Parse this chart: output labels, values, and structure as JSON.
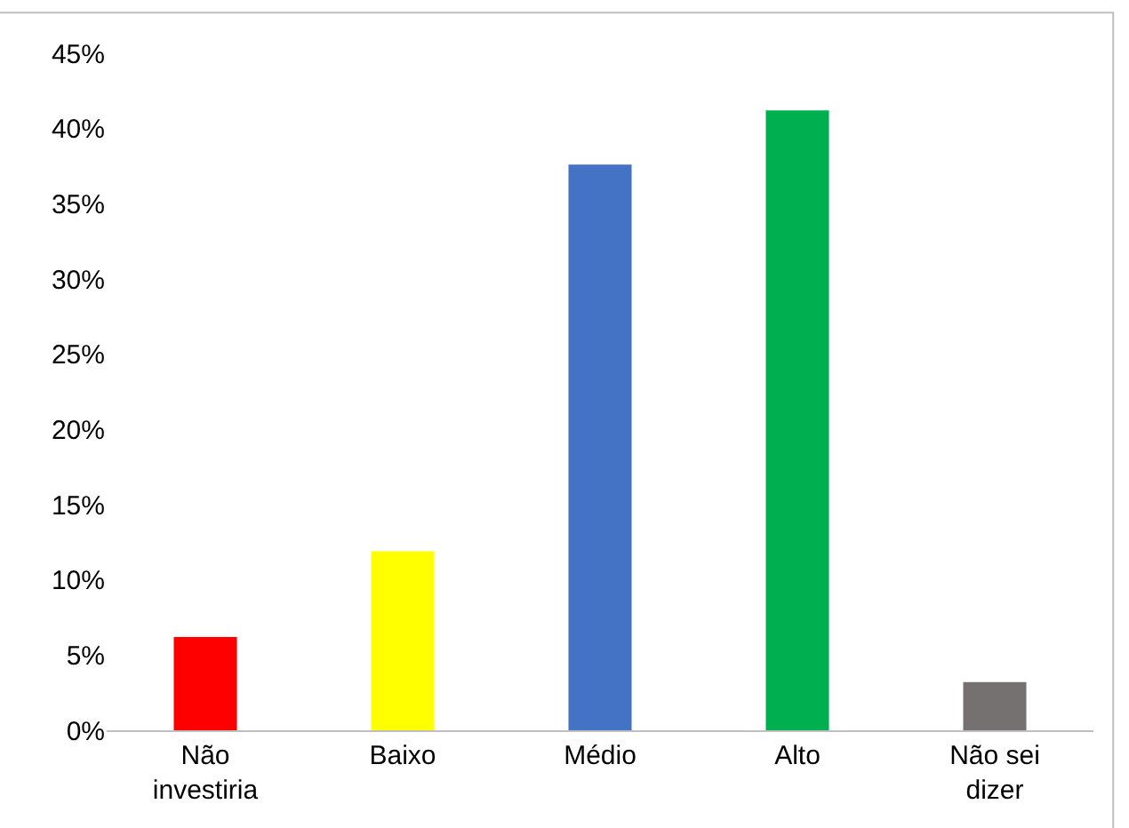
{
  "chart_data": {
    "type": "bar",
    "categories": [
      "Não investiria",
      "Baixo",
      "Médio",
      "Alto",
      "Não sei dizer"
    ],
    "values": [
      6.2,
      11.9,
      37.6,
      41.2,
      3.2
    ],
    "colors": [
      "#ff0000",
      "#ffff00",
      "#4472c4",
      "#00b050",
      "#767171"
    ],
    "ylim": [
      0,
      45
    ],
    "yticks": [
      {
        "value": 0,
        "label": "0%"
      },
      {
        "value": 5,
        "label": "5%"
      },
      {
        "value": 10,
        "label": "10%"
      },
      {
        "value": 15,
        "label": "15%"
      },
      {
        "value": 20,
        "label": "20%"
      },
      {
        "value": 25,
        "label": "25%"
      },
      {
        "value": 30,
        "label": "30%"
      },
      {
        "value": 35,
        "label": "35%"
      },
      {
        "value": 40,
        "label": "40%"
      },
      {
        "value": 45,
        "label": "45%"
      }
    ]
  }
}
